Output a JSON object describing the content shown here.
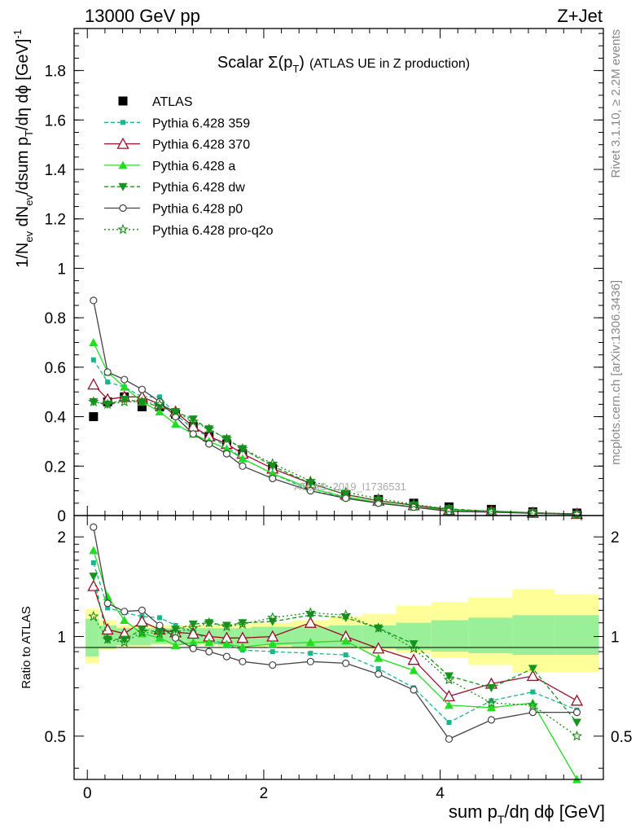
{
  "header": {
    "left": "13000 GeV pp",
    "right": "Z+Jet"
  },
  "side": {
    "rivet": "Rivet 3.1.10, ≥ 2.2M events",
    "mcplots": "mcplots.cern.ch [arXiv:1306.3436]"
  },
  "watermark": "ATLAS_2019_I1736531",
  "chart_data": [
    {
      "type": "line",
      "title": "Scalar Σ(p_T) (ATLAS UE in Z production)",
      "title_parts": {
        "a": "Scalar Σ(p",
        "sub": "T",
        "b": ")",
        "c": "(ATLAS UE in Z production)"
      },
      "ylabel": "1/N_ev dN_ev/dsum p_T/dη dϕ [GeV]^-1",
      "ylabel_parts": {
        "p1": "1/N",
        "s1": "ev",
        "p2": " dN",
        "s2": "ev",
        "p3": "/dsum p",
        "s3": "T",
        "p4": "/dη dϕ  [GeV]",
        "sup": "-1"
      },
      "xlim": [
        -0.15,
        5.85
      ],
      "ylim": [
        0,
        1.97
      ],
      "yticks": [
        "0",
        "0.2",
        "0.4",
        "0.6",
        "0.8",
        "1",
        "1.2",
        "1.4",
        "1.6",
        "1.8"
      ],
      "legend_position": "top-left",
      "x": [
        0.07,
        0.23,
        0.42,
        0.62,
        0.82,
        1.0,
        1.2,
        1.38,
        1.58,
        1.76,
        2.1,
        2.53,
        2.93,
        3.3,
        3.7,
        4.1,
        4.58,
        5.05,
        5.55
      ],
      "series": [
        {
          "name": "ATLAS",
          "color": "#000000",
          "marker": "filled-square",
          "line": "none",
          "values": [
            0.4,
            0.46,
            0.48,
            0.44,
            0.44,
            0.41,
            0.36,
            0.32,
            0.29,
            0.25,
            0.19,
            0.12,
            0.085,
            0.065,
            0.05,
            0.035,
            0.025,
            0.015,
            0.01
          ]
        },
        {
          "name": "Pythia 6.428 359",
          "color": "#1ab58a",
          "marker": "small-square",
          "line": "dashed",
          "values": [
            0.63,
            0.54,
            0.52,
            0.48,
            0.48,
            0.41,
            0.35,
            0.32,
            0.28,
            0.23,
            0.17,
            0.1,
            0.075,
            0.052,
            0.035,
            0.02,
            0.016,
            0.01,
            0.006
          ]
        },
        {
          "name": "Pythia 6.428 370",
          "color": "#9a0e2a",
          "marker": "open-triangle",
          "line": "solid",
          "values": [
            0.53,
            0.47,
            0.48,
            0.48,
            0.45,
            0.42,
            0.36,
            0.32,
            0.29,
            0.25,
            0.19,
            0.13,
            0.085,
            0.06,
            0.042,
            0.023,
            0.018,
            0.011,
            0.0065
          ]
        },
        {
          "name": "Pythia 6.428 a",
          "color": "#22dd22",
          "marker": "filled-triangle",
          "line": "solid",
          "values": [
            0.7,
            0.58,
            0.52,
            0.46,
            0.42,
            0.37,
            0.33,
            0.3,
            0.27,
            0.23,
            0.17,
            0.11,
            0.075,
            0.053,
            0.034,
            0.022,
            0.016,
            0.0095,
            0.004
          ]
        },
        {
          "name": "Pythia 6.428 dw",
          "color": "#14961e",
          "marker": "filled-triangle-down",
          "line": "dashed",
          "values": [
            0.46,
            0.45,
            0.47,
            0.46,
            0.44,
            0.42,
            0.39,
            0.35,
            0.31,
            0.27,
            0.2,
            0.13,
            0.085,
            0.06,
            0.042,
            0.027,
            0.017,
            0.012,
            0.0055
          ]
        },
        {
          "name": "Pythia 6.428 p0",
          "color": "#444444",
          "marker": "open-circle",
          "line": "solid",
          "values": [
            0.87,
            0.58,
            0.55,
            0.51,
            0.46,
            0.4,
            0.33,
            0.29,
            0.25,
            0.2,
            0.15,
            0.1,
            0.07,
            0.05,
            0.034,
            0.017,
            0.014,
            0.009,
            0.006
          ]
        },
        {
          "name": "Pythia 6.428 pro-q2o",
          "color": "#1a8a1a",
          "marker": "open-star",
          "line": "dotted",
          "values": [
            0.46,
            0.45,
            0.46,
            0.46,
            0.45,
            0.42,
            0.38,
            0.35,
            0.31,
            0.27,
            0.21,
            0.14,
            0.095,
            0.069,
            0.045,
            0.026,
            0.016,
            0.01,
            0.005
          ]
        }
      ]
    },
    {
      "type": "line",
      "title": "",
      "ylabel": "Ratio to ATLAS",
      "xlabel": "sum p_T/dη dϕ [GeV]",
      "xlabel_parts": {
        "a": "sum p",
        "sub": "T",
        "b": "/dη dϕ [GeV]"
      },
      "xlim": [
        -0.15,
        5.85
      ],
      "ylim": [
        0.37,
        2.32
      ],
      "yticks": [
        "0.5",
        "1",
        "2"
      ],
      "xticks": [
        "0",
        "2",
        "4"
      ],
      "reference_line": 1,
      "x": [
        0.07,
        0.23,
        0.42,
        0.62,
        0.82,
        1.0,
        1.2,
        1.38,
        1.58,
        1.76,
        2.1,
        2.53,
        2.93,
        3.3,
        3.7,
        4.1,
        4.58,
        5.05,
        5.55
      ],
      "bin_edges": [
        -0.02,
        0.13,
        0.33,
        0.52,
        0.72,
        0.92,
        1.1,
        1.29,
        1.48,
        1.67,
        1.86,
        2.32,
        2.74,
        3.12,
        3.5,
        3.9,
        4.32,
        4.82,
        5.3,
        5.8
      ],
      "band_inner": [
        [
          0.87,
          1.13
        ],
        [
          0.92,
          1.08
        ],
        [
          0.94,
          1.06
        ],
        [
          0.94,
          1.06
        ],
        [
          0.95,
          1.06
        ],
        [
          0.95,
          1.06
        ],
        [
          0.95,
          1.06
        ],
        [
          0.95,
          1.06
        ],
        [
          0.94,
          1.06
        ],
        [
          0.94,
          1.06
        ],
        [
          0.94,
          1.07
        ],
        [
          0.93,
          1.07
        ],
        [
          0.93,
          1.08
        ],
        [
          0.92,
          1.08
        ],
        [
          0.91,
          1.1
        ],
        [
          0.9,
          1.12
        ],
        [
          0.89,
          1.14
        ],
        [
          0.88,
          1.16
        ],
        [
          0.88,
          1.16
        ]
      ],
      "band_outer": [
        [
          0.83,
          1.21
        ],
        [
          0.91,
          1.12
        ],
        [
          0.93,
          1.08
        ],
        [
          0.93,
          1.08
        ],
        [
          0.94,
          1.08
        ],
        [
          0.94,
          1.08
        ],
        [
          0.94,
          1.08
        ],
        [
          0.94,
          1.08
        ],
        [
          0.93,
          1.09
        ],
        [
          0.93,
          1.09
        ],
        [
          0.93,
          1.1
        ],
        [
          0.92,
          1.12
        ],
        [
          0.92,
          1.15
        ],
        [
          0.91,
          1.17
        ],
        [
          0.89,
          1.24
        ],
        [
          0.86,
          1.27
        ],
        [
          0.82,
          1.31
        ],
        [
          0.78,
          1.39
        ],
        [
          0.78,
          1.34
        ]
      ],
      "series": [
        {
          "name": "Pythia 6.428 359",
          "color": "#1ab58a",
          "marker": "small-square",
          "line": "dashed",
          "values": [
            1.67,
            1.22,
            1.18,
            1.15,
            1.14,
            1.08,
            1.03,
            0.98,
            0.95,
            0.91,
            0.9,
            0.89,
            0.88,
            0.8,
            0.7,
            0.55,
            0.64,
            0.68,
            0.6
          ]
        },
        {
          "name": "Pythia 6.428 370",
          "color": "#9a0e2a",
          "marker": "open-triangle",
          "line": "solid",
          "values": [
            1.42,
            1.05,
            1.02,
            1.11,
            1.05,
            1.03,
            1.02,
            1.0,
            0.99,
            0.99,
            1.0,
            1.1,
            1.0,
            0.92,
            0.85,
            0.66,
            0.72,
            0.76,
            0.64
          ]
        },
        {
          "name": "Pythia 6.428 a",
          "color": "#22dd22",
          "marker": "filled-triangle",
          "line": "solid",
          "values": [
            1.82,
            1.32,
            1.12,
            1.02,
            0.99,
            0.94,
            0.96,
            0.96,
            0.95,
            0.93,
            0.95,
            0.96,
            0.97,
            0.86,
            0.79,
            0.62,
            0.61,
            0.63,
            0.36
          ]
        },
        {
          "name": "Pythia 6.428 dw",
          "color": "#14961e",
          "marker": "filled-triangle-down",
          "line": "dashed",
          "values": [
            1.52,
            0.98,
            0.98,
            1.05,
            1.03,
            1.05,
            1.09,
            1.1,
            1.08,
            1.1,
            1.11,
            1.16,
            1.14,
            1.06,
            0.95,
            0.76,
            0.7,
            0.8,
            0.55
          ]
        },
        {
          "name": "Pythia 6.428 p0",
          "color": "#444444",
          "marker": "open-circle",
          "line": "solid",
          "values": [
            2.14,
            1.26,
            1.19,
            1.2,
            1.08,
            0.99,
            0.92,
            0.9,
            0.87,
            0.84,
            0.82,
            0.84,
            0.83,
            0.77,
            0.69,
            0.49,
            0.56,
            0.59,
            0.59
          ]
        },
        {
          "name": "Pythia 6.428 pro-q2o",
          "color": "#1a8a1a",
          "marker": "open-star",
          "line": "dotted",
          "values": [
            1.15,
            0.98,
            0.96,
            1.03,
            1.02,
            1.03,
            1.06,
            1.1,
            1.07,
            1.09,
            1.14,
            1.18,
            1.16,
            1.06,
            0.92,
            0.74,
            0.63,
            0.62,
            0.5
          ]
        }
      ]
    }
  ]
}
